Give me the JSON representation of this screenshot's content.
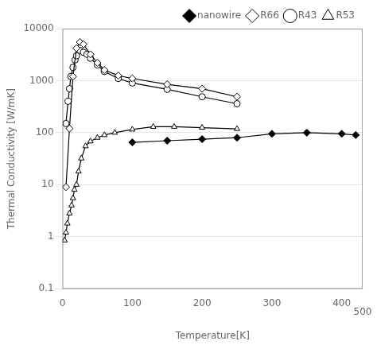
{
  "chart_data": {
    "type": "line",
    "x_label": "Temperature[K]",
    "y_label": "Thermal Conductivity [W/mK]",
    "series": [
      {
        "name": "nanowire",
        "color": "black",
        "marker": "diamond-filled",
        "x": [
          100,
          150,
          200,
          250,
          300,
          350,
          400,
          420
        ],
        "values": [
          65,
          70,
          75,
          80,
          95,
          100,
          95,
          90
        ]
      },
      {
        "name": "R66",
        "color": "black",
        "marker": "diamond",
        "x": [
          5,
          10,
          15,
          20,
          25,
          30,
          40,
          50,
          60,
          80,
          100,
          150,
          200,
          250
        ],
        "values": [
          9,
          120,
          1200,
          4200,
          5500,
          5000,
          3200,
          2200,
          1600,
          1250,
          1100,
          850,
          700,
          490
        ]
      },
      {
        "name": "R43",
        "color": "black",
        "marker": "circle",
        "x": [
          5,
          8,
          10,
          12,
          15,
          18,
          20,
          25,
          30,
          35,
          40,
          50,
          60,
          80,
          100,
          150,
          200,
          250
        ],
        "values": [
          150,
          400,
          700,
          1200,
          1800,
          2500,
          3000,
          3800,
          3500,
          3200,
          2700,
          2000,
          1500,
          1100,
          900,
          680,
          490,
          360
        ]
      },
      {
        "name": "R53",
        "color": "black",
        "marker": "triangle",
        "x": [
          3,
          5,
          7,
          10,
          13,
          15,
          17,
          20,
          23,
          27,
          33,
          40,
          50,
          60,
          75,
          100,
          130,
          160,
          200,
          250
        ],
        "values": [
          0.85,
          1.2,
          1.8,
          2.8,
          4.0,
          5.5,
          8.0,
          10,
          18,
          32,
          55,
          68,
          80,
          90,
          100,
          115,
          130,
          130,
          125,
          118
        ]
      }
    ],
    "xlim": [
      0,
      430
    ],
    "xticks": [
      0,
      100,
      200,
      300,
      400
    ],
    "ylim": [
      0.1,
      10000
    ],
    "yticks": [
      0.1,
      1,
      10,
      100,
      1000,
      10000
    ],
    "log": "y",
    "grid": "y",
    "legend": "upper right",
    "annotations": [
      {
        "text": "500",
        "x": 430
      }
    ]
  }
}
